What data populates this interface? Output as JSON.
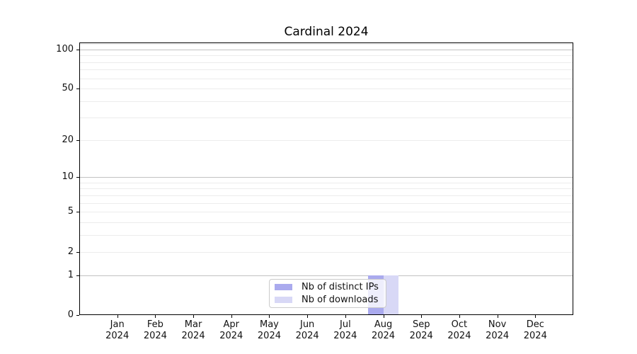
{
  "chart_data": {
    "type": "bar",
    "title": "Cardinal 2024",
    "x_categories": [
      "Jan",
      "Feb",
      "Mar",
      "Apr",
      "May",
      "Jun",
      "Jul",
      "Aug",
      "Sep",
      "Oct",
      "Nov",
      "Dec"
    ],
    "x_year": "2024",
    "series": [
      {
        "name": "Nb of distinct IPs",
        "color": "#aaaaee",
        "values": [
          0,
          0,
          0,
          0,
          0,
          0,
          0,
          1,
          0,
          0,
          0,
          0
        ]
      },
      {
        "name": "Nb of downloads",
        "color": "#d8d8f6",
        "values": [
          0,
          0,
          0,
          0,
          0,
          0,
          0,
          1,
          0,
          0,
          0,
          0
        ]
      }
    ],
    "y_scale": "log10(1+x)",
    "ylim": [
      0,
      113
    ],
    "y_tick_values": [
      0,
      1,
      2,
      5,
      10,
      20,
      50,
      100
    ],
    "y_tick_labels": [
      "0",
      "1",
      "2",
      "5",
      "10",
      "20",
      "50",
      "100"
    ],
    "y_major_gridlines": [
      1,
      10,
      100
    ],
    "y_minor_gridlines": [
      2,
      3,
      4,
      5,
      6,
      7,
      8,
      9,
      20,
      30,
      40,
      50,
      60,
      70,
      80,
      90,
      110
    ],
    "grid": true,
    "legend_position": "inside-bottom-center",
    "colors": {
      "spine": "#000000",
      "grid_major": "#c2c2c2",
      "grid_minor": "#ececec",
      "text": "#111111"
    }
  }
}
